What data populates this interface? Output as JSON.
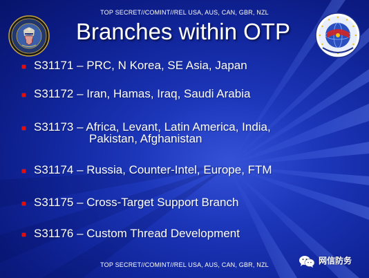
{
  "slide": {
    "classification_top": "TOP SECRET//COMINT//REL USA, AUS, CAN, GBR, NZL",
    "classification_bottom": "TOP SECRET//COMINT//REL USA, AUS, CAN, GBR, NZL",
    "title": "Branches within OTP",
    "seal_icon": "nsa-seal-icon",
    "logo_icon": "target-logo-icon",
    "bullet_color": "#e00f0f",
    "background_color": "#1d37bb",
    "bullets": [
      {
        "lines": [
          "S31171 – PRC, N Korea, SE Asia, Japan"
        ]
      },
      {
        "lines": [
          "S31172 – Iran, Hamas, Iraq, Saudi Arabia"
        ]
      },
      {
        "lines": [
          "S31173 – Africa, Levant, Latin America, India,",
          "Pakistan, Afghanistan"
        ]
      },
      {
        "lines": [
          "S31174 – Russia, Counter-Intel, Europe, FTM"
        ]
      },
      {
        "lines": [
          "S31175 – Cross-Target Support Branch"
        ]
      },
      {
        "lines": [
          "S31176 – Custom Thread Development"
        ]
      }
    ]
  },
  "watermark": {
    "text": "网信防务",
    "icon": "wechat-icon"
  }
}
